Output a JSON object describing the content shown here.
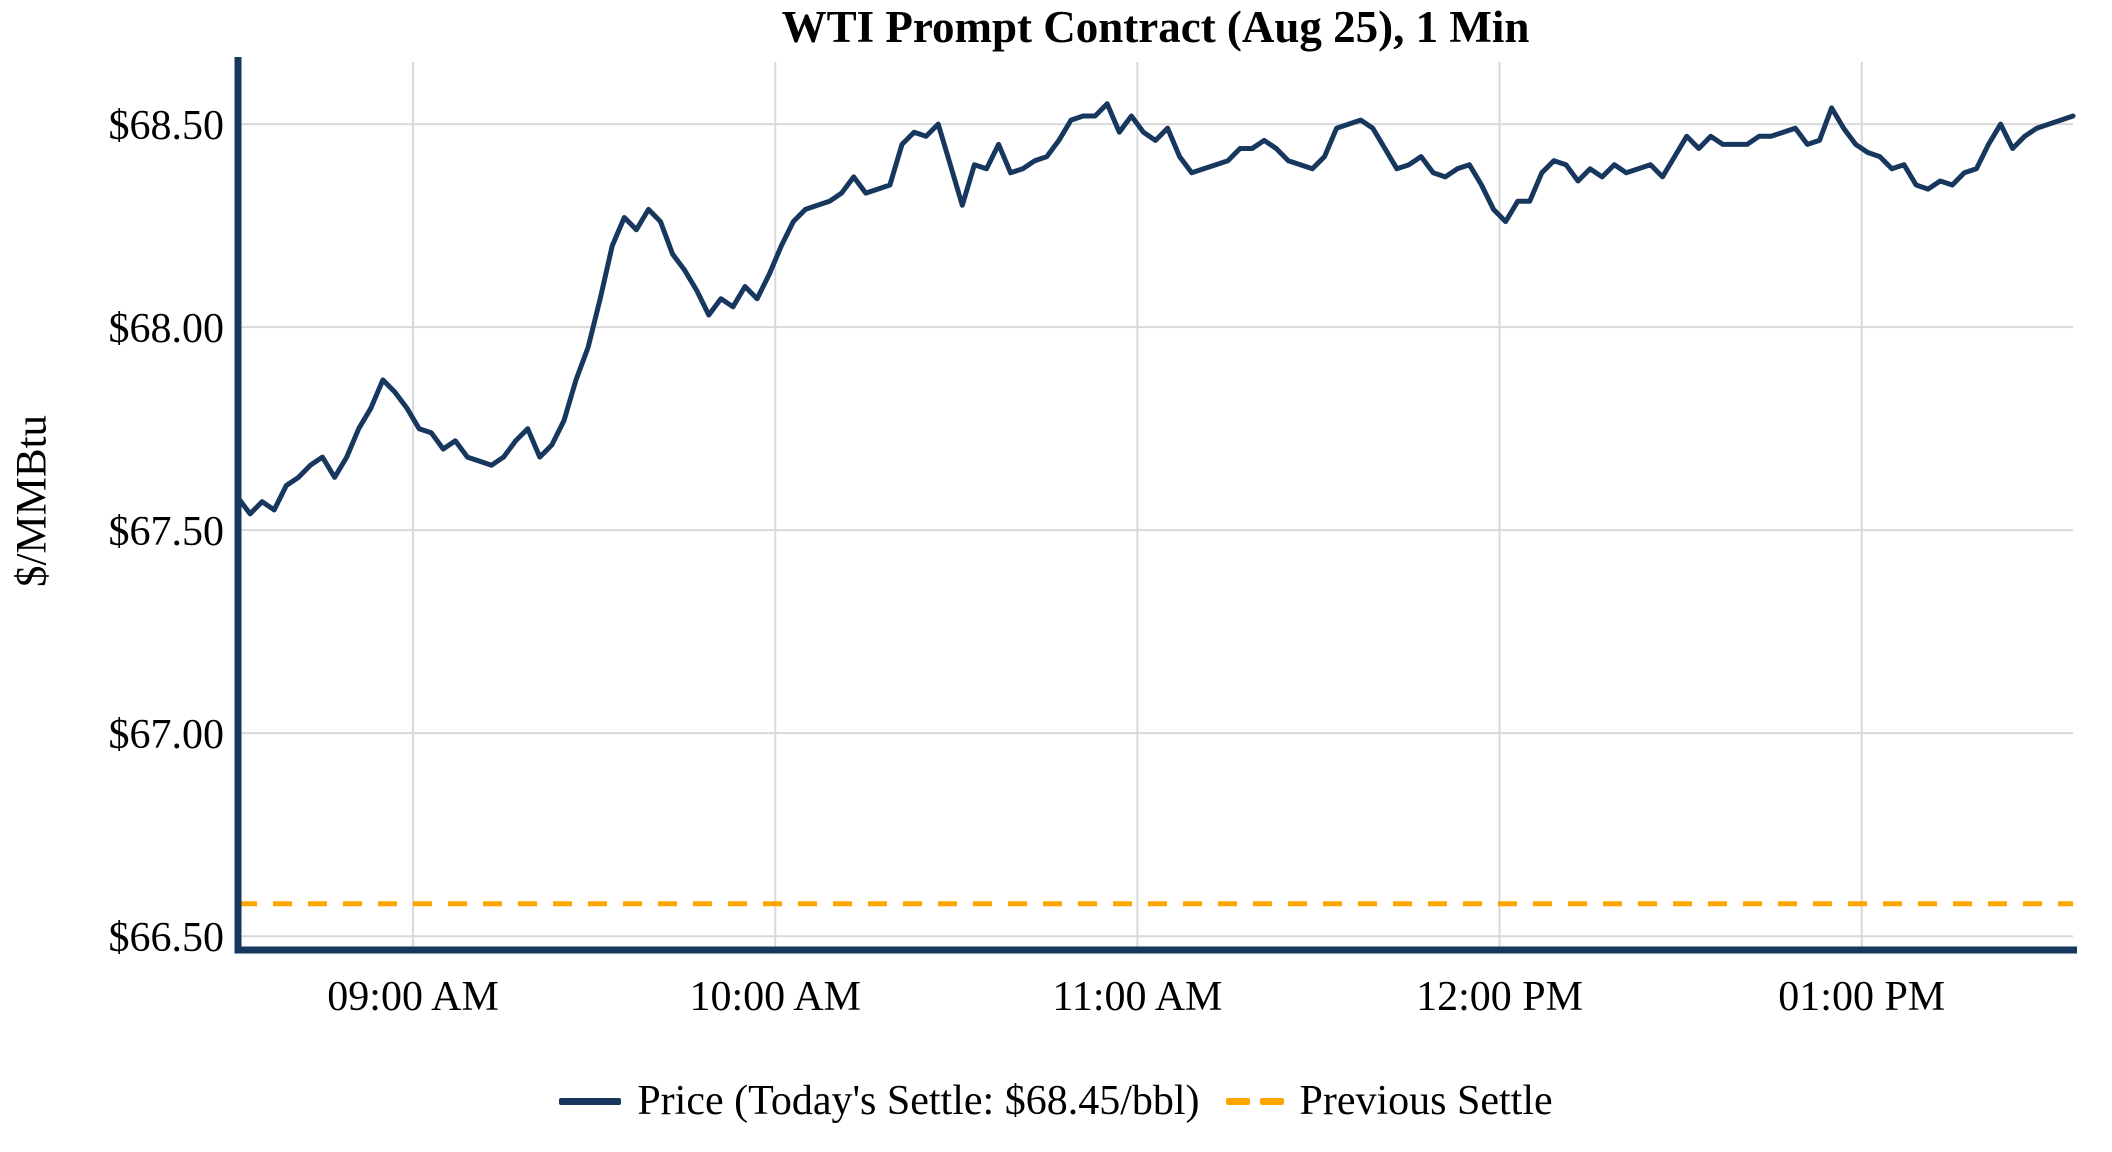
{
  "title": "WTI Prompt Contract (Aug 25), 1 Min",
  "y_axis": {
    "label": "$/MMBtu",
    "tick_labels": [
      "$66.50",
      "$67.00",
      "$67.50",
      "$68.00",
      "$68.50"
    ],
    "tick_values": [
      66.5,
      67.0,
      67.5,
      68.0,
      68.5
    ]
  },
  "x_axis": {
    "tick_labels": [
      "09:00 AM",
      "10:00 AM",
      "11:00 AM",
      "12:00 PM",
      "01:00 PM"
    ],
    "tick_minutes": [
      540,
      600,
      660,
      720,
      780
    ]
  },
  "legend": {
    "price_label": "Price (Today's Settle: $68.45/bbl)",
    "previous_settle_label": "Previous Settle"
  },
  "colors": {
    "price_line": "#17375e",
    "previous_settle_line": "#ffa500",
    "grid": "#d9d9d9",
    "axis_spine": "#17375e",
    "text": "#000000",
    "background": "#ffffff"
  },
  "chart_data": {
    "type": "line",
    "title": "WTI Prompt Contract (Aug 25), 1 Min",
    "xlabel": "",
    "ylabel": "$/MMBtu",
    "grid": true,
    "legend_position": "bottom",
    "ylim": [
      66.466,
      68.653
    ],
    "x_range_minutes": [
      511,
      815
    ],
    "x_start_time": "08:31 AM",
    "x_end_time": "01:35 PM",
    "x_interval_minutes": 2,
    "x_ticks": [
      "09:00 AM",
      "10:00 AM",
      "11:00 AM",
      "12:00 PM",
      "01:00 PM"
    ],
    "y_ticks": [
      66.5,
      67.0,
      67.5,
      68.0,
      68.5
    ],
    "today_settle_usd_per_bbl": 68.45,
    "previous_settle": 66.58,
    "series": [
      {
        "name": "Price (Today's Settle: $68.45/bbl)",
        "style": "solid",
        "values": [
          67.58,
          67.54,
          67.57,
          67.55,
          67.61,
          67.63,
          67.66,
          67.68,
          67.63,
          67.68,
          67.75,
          67.8,
          67.87,
          67.84,
          67.8,
          67.75,
          67.74,
          67.7,
          67.72,
          67.68,
          67.67,
          67.66,
          67.68,
          67.72,
          67.75,
          67.68,
          67.71,
          67.77,
          67.87,
          67.95,
          68.07,
          68.2,
          68.27,
          68.24,
          68.29,
          68.26,
          68.18,
          68.14,
          68.09,
          68.03,
          68.07,
          68.05,
          68.1,
          68.07,
          68.13,
          68.2,
          68.26,
          68.29,
          68.3,
          68.31,
          68.33,
          68.37,
          68.33,
          68.34,
          68.35,
          68.45,
          68.48,
          68.47,
          68.5,
          68.4,
          68.3,
          68.4,
          68.39,
          68.45,
          68.38,
          68.39,
          68.41,
          68.42,
          68.46,
          68.51,
          68.52,
          68.52,
          68.55,
          68.48,
          68.52,
          68.48,
          68.46,
          68.49,
          68.42,
          68.38,
          68.39,
          68.4,
          68.41,
          68.44,
          68.44,
          68.46,
          68.44,
          68.41,
          68.4,
          68.39,
          68.42,
          68.49,
          68.5,
          68.51,
          68.49,
          68.44,
          68.39,
          68.4,
          68.42,
          68.38,
          68.37,
          68.39,
          68.4,
          68.35,
          68.29,
          68.26,
          68.31,
          68.31,
          68.38,
          68.41,
          68.4,
          68.36,
          68.39,
          68.37,
          68.4,
          68.38,
          68.39,
          68.4,
          68.37,
          68.42,
          68.47,
          68.44,
          68.47,
          68.45,
          68.45,
          68.45,
          68.47,
          68.47,
          68.48,
          68.49,
          68.45,
          68.46,
          68.54,
          68.49,
          68.45,
          68.43,
          68.42,
          68.39,
          68.4,
          68.35,
          68.34,
          68.36,
          68.35,
          68.38,
          68.39,
          68.45,
          68.5,
          68.44,
          68.47,
          68.49,
          68.5,
          68.51,
          68.52
        ]
      },
      {
        "name": "Previous Settle",
        "style": "dashed-horizontal",
        "value": 66.58
      }
    ]
  }
}
